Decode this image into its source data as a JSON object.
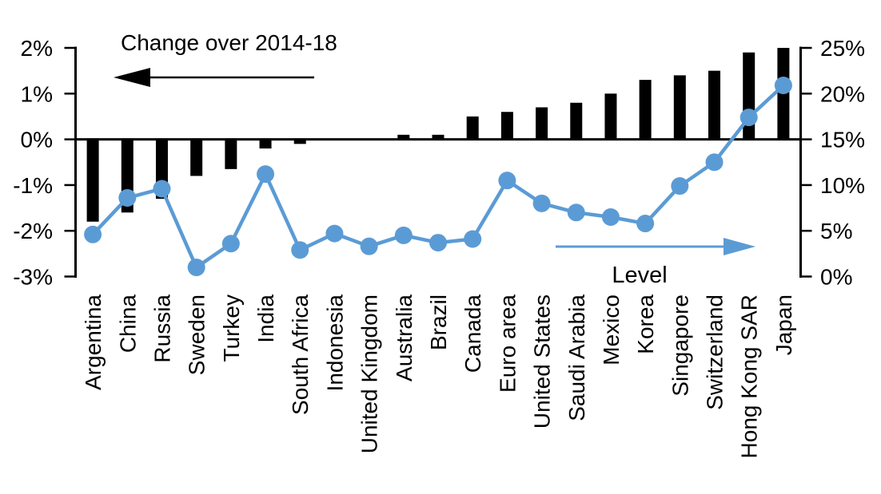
{
  "chart_data": {
    "type": "combo-bar-line",
    "categories": [
      "Argentina",
      "China",
      "Russia",
      "Sweden",
      "Turkey",
      "India",
      "South Africa",
      "Indonesia",
      "United Kingdom",
      "Australia",
      "Brazil",
      "Canada",
      "Euro area",
      "United States",
      "Saudi Arabia",
      "Mexico",
      "Korea",
      "Singapore",
      "Switzerland",
      "Hong Kong SAR",
      "Japan"
    ],
    "series": [
      {
        "name": "Change over 2014-18",
        "type": "bar",
        "axis": "left",
        "color": "#000000",
        "values": [
          -1.8,
          -1.6,
          -1.3,
          -0.8,
          -0.65,
          -0.2,
          -0.1,
          0,
          0,
          0.1,
          0.1,
          0.5,
          0.6,
          0.7,
          0.8,
          1.0,
          1.3,
          1.4,
          1.5,
          1.9,
          2.0
        ]
      },
      {
        "name": "Level",
        "type": "line",
        "axis": "right",
        "color": "#5B9BD5",
        "values": [
          4.6,
          8.6,
          9.6,
          1.0,
          3.6,
          11.2,
          2.9,
          4.7,
          3.3,
          4.5,
          3.7,
          4.1,
          10.5,
          8.0,
          7.0,
          6.5,
          5.8,
          9.9,
          12.5,
          17.4,
          20.9
        ]
      }
    ],
    "left_axis": {
      "min": -3,
      "max": 2,
      "tick_values": [
        2,
        1,
        0,
        -1,
        -2,
        -3
      ],
      "tick_labels": [
        "2%",
        "1%",
        "0%",
        "-1%",
        "-2%",
        "-3%"
      ]
    },
    "right_axis": {
      "min": 0,
      "max": 25,
      "tick_values": [
        25,
        20,
        15,
        10,
        5,
        0
      ],
      "tick_labels": [
        "25%",
        "20%",
        "15%",
        "10%",
        "5%",
        "0%"
      ]
    },
    "annotations": {
      "bars_label": "Change over 2014-18",
      "bars_arrow_direction": "left",
      "line_label": "Level",
      "line_arrow_direction": "right"
    },
    "grid": false,
    "legend_position": "none",
    "colors": {
      "bar": "#000000",
      "line": "#5B9BD5",
      "axis": "#000000",
      "background": "#FFFFFF"
    }
  }
}
